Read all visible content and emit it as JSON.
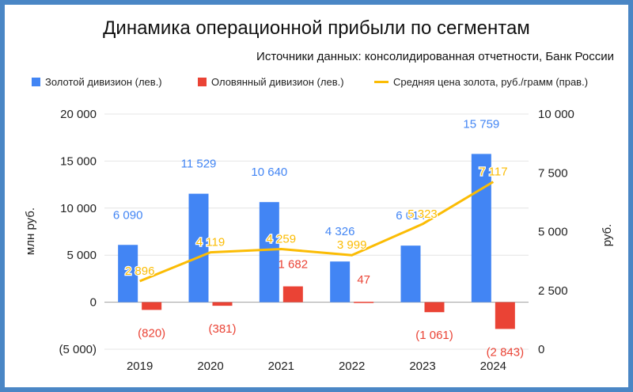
{
  "chart_data": {
    "type": "bar",
    "title": "Динамика операционной прибыли по сегментам",
    "subtitle": "Источники данных: консолидированная отчетности, Банк России",
    "categories": [
      "2019",
      "2020",
      "2021",
      "2022",
      "2023",
      "2024"
    ],
    "series": [
      {
        "name": "Золотой дивизион (лев.)",
        "type": "bar",
        "axis": "left",
        "color": "#4285f4",
        "label_color": "#4285f4",
        "values": [
          6090,
          11529,
          10640,
          4326,
          6014,
          15759
        ],
        "labels": [
          "6 090",
          "11 529",
          "10 640",
          "4 326",
          "6 014",
          "15 759"
        ]
      },
      {
        "name": "Оловянный дивизион (лев.)",
        "type": "bar",
        "axis": "left",
        "color": "#ea4335",
        "label_color": "#ea4335",
        "values": [
          -820,
          -381,
          1682,
          47,
          -1061,
          -2843
        ],
        "labels": [
          "(820)",
          "(381)",
          "1 682",
          "47",
          "(1 061)",
          "(2 843)"
        ]
      },
      {
        "name": "Средняя цена золота, руб./грамм (прав.)",
        "type": "line",
        "axis": "right",
        "color": "#fbbc04",
        "label_color": "#fbbc04",
        "values": [
          2896,
          4119,
          4259,
          3999,
          5323,
          7117
        ],
        "labels": [
          "2 896",
          "4 119",
          "4 259",
          "3 999",
          "5 323",
          "7 117"
        ]
      }
    ],
    "y_left": {
      "label": "млн руб.",
      "ylim": [
        -5000,
        20000
      ],
      "ticks": [
        20000,
        15000,
        10000,
        5000,
        0,
        -5000
      ],
      "tick_labels": [
        "20 000",
        "15 000",
        "10 000",
        "5 000",
        "0",
        "(5 000)"
      ]
    },
    "y_right": {
      "label": "руб.",
      "ylim": [
        0,
        10000
      ],
      "ticks": [
        10000,
        7500,
        5000,
        2500,
        0
      ],
      "tick_labels": [
        "10 000",
        "7 500",
        "5 000",
        "2 500",
        "0"
      ]
    },
    "grid": true,
    "legend_position": "top"
  }
}
